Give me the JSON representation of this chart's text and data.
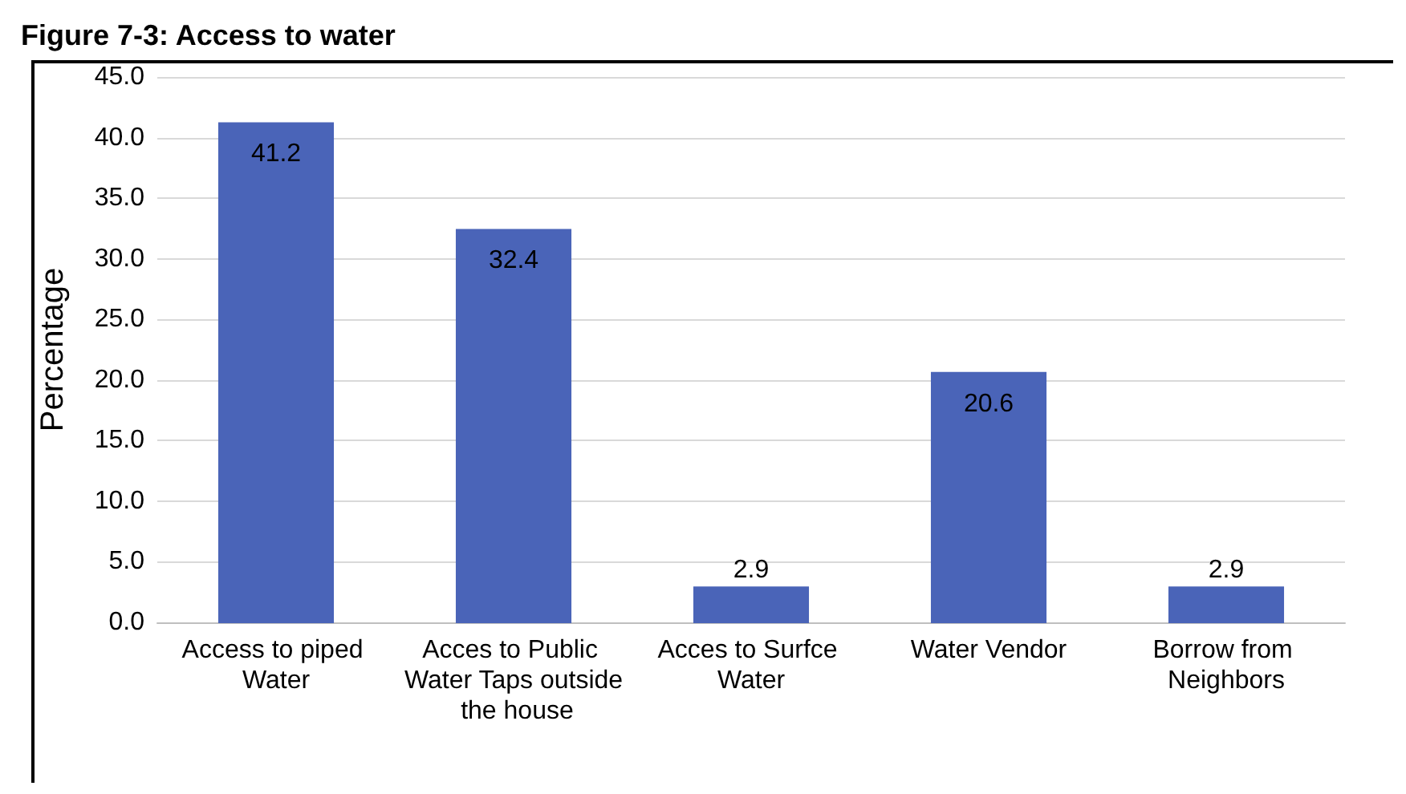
{
  "chart_data": {
    "type": "bar",
    "title": "Figure 7-3: Access to water",
    "ylabel": "Percentage",
    "categories": [
      "Access to piped Water",
      "Acces to Public Water Taps outside the house",
      "Acces to Surfce Water",
      "Water Vendor",
      "Borrow from Neighbors"
    ],
    "values": [
      41.2,
      32.4,
      2.9,
      20.6,
      2.9
    ],
    "color": "#4a64b8",
    "ylim": [
      0,
      45
    ],
    "yticks": [
      {
        "value": 0,
        "label": "0.0"
      },
      {
        "value": 5,
        "label": "5.0"
      },
      {
        "value": 10,
        "label": "10.0"
      },
      {
        "value": 15,
        "label": "15.0"
      },
      {
        "value": 20,
        "label": "20.0"
      },
      {
        "value": 25,
        "label": "25.0"
      },
      {
        "value": 30,
        "label": "30.0"
      },
      {
        "value": 35,
        "label": "35.0"
      },
      {
        "value": 40,
        "label": "40.0"
      },
      {
        "value": 45,
        "label": "45.0"
      }
    ],
    "grid": "y",
    "data_labels": true
  }
}
